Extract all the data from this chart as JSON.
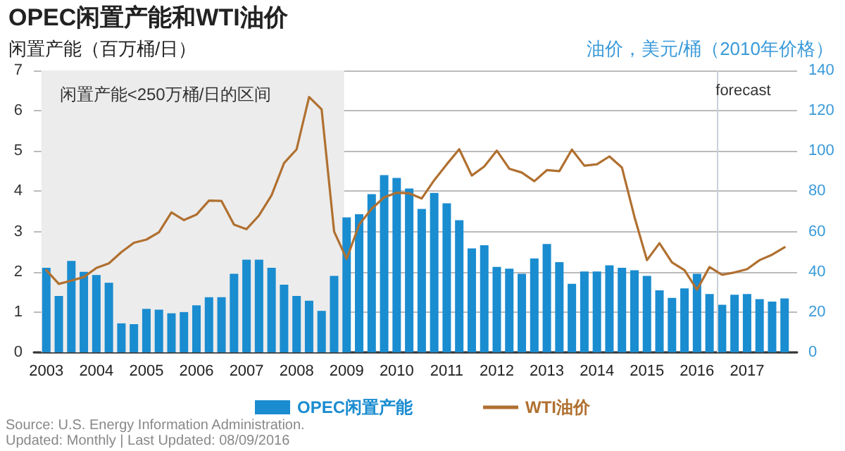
{
  "chart_data": {
    "type": "bar",
    "title": "OPEC闲置产能和WTI油价",
    "ylabel": "闲置产能（百万桶/日）",
    "y2label": "油价，美元/桶（2010年价格）",
    "x": [
      2003,
      2003.25,
      2003.5,
      2003.75,
      2004,
      2004.25,
      2004.5,
      2004.75,
      2005,
      2005.25,
      2005.5,
      2005.75,
      2006,
      2006.25,
      2006.5,
      2006.75,
      2007,
      2007.25,
      2007.5,
      2007.75,
      2008,
      2008.25,
      2008.5,
      2008.75,
      2009,
      2009.25,
      2009.5,
      2009.75,
      2010,
      2010.25,
      2010.5,
      2010.75,
      2011,
      2011.25,
      2011.5,
      2011.75,
      2012,
      2012.25,
      2012.5,
      2012.75,
      2013,
      2013.25,
      2013.5,
      2013.75,
      2014,
      2014.25,
      2014.5,
      2014.75,
      2015,
      2015.25,
      2015.5,
      2015.75,
      2016,
      2016.25,
      2016.5,
      2016.75,
      2017,
      2017.25,
      2017.5,
      2017.75
    ],
    "series": [
      {
        "name": "OPEC闲置产能",
        "color": "#1a8cd0",
        "values": [
          2.1,
          1.4,
          2.27,
          2.0,
          1.92,
          1.73,
          0.72,
          0.7,
          1.08,
          1.06,
          0.97,
          1.0,
          1.17,
          1.37,
          1.37,
          1.95,
          2.3,
          2.3,
          2.1,
          1.68,
          1.4,
          1.28,
          1.03,
          1.9,
          3.35,
          3.43,
          3.93,
          4.4,
          4.33,
          4.07,
          3.56,
          3.96,
          3.7,
          3.28,
          2.58,
          2.66,
          2.12,
          2.08,
          1.95,
          2.33,
          2.69,
          2.24,
          1.7,
          2.01,
          2.01,
          2.16,
          2.1,
          2.04,
          1.9,
          1.54,
          1.35,
          1.59,
          1.95,
          1.45,
          1.18,
          1.43,
          1.45,
          1.32,
          1.26,
          1.34
        ]
      },
      {
        "name": "WTI油价",
        "type": "line",
        "axis": "y2",
        "color": "#b07030",
        "values": [
          40.8,
          34,
          35.6,
          37.4,
          41.9,
          44.2,
          49.8,
          54.4,
          56,
          59.6,
          69.5,
          65.7,
          68.4,
          75.4,
          75.2,
          63.4,
          61.2,
          68,
          78,
          94,
          100.8,
          126.8,
          120.7,
          60,
          46.4,
          63.4,
          71.3,
          77,
          79.3,
          79,
          76.4,
          85.5,
          93.4,
          100.9,
          87.8,
          92.3,
          100.2,
          91.2,
          89.3,
          85,
          90.5,
          90,
          100.7,
          92.7,
          93.4,
          97.3,
          91.8,
          67.3,
          45.8,
          54.2,
          44.7,
          40.8,
          31.1,
          42.4,
          38.5,
          39.7,
          41.3,
          45.8,
          48.5,
          52.2
        ]
      }
    ],
    "xlim": [
      2002.75,
      2018
    ],
    "xticks": [
      2003,
      2004,
      2005,
      2006,
      2007,
      2008,
      2009,
      2010,
      2011,
      2012,
      2013,
      2014,
      2015,
      2016,
      2017
    ],
    "ylim": [
      0,
      7
    ],
    "yticks": [
      0,
      1,
      2,
      3,
      4,
      5,
      6,
      7
    ],
    "y2lim": [
      0,
      140
    ],
    "y2ticks": [
      0,
      20,
      40,
      60,
      80,
      100,
      120,
      140
    ],
    "bands": [
      {
        "axis": "x",
        "from": 2002.9,
        "to": 2008.95,
        "label": "闲置产能<250万桶/日的区间",
        "color": "#ececec"
      }
    ],
    "ref_lines": [
      {
        "axis": "x",
        "value": 2016.4,
        "label": "forecast",
        "color": "#c8d0d8"
      }
    ],
    "grid": "y",
    "legend": "bottom",
    "marker": "none",
    "line_style": "solid",
    "annotations": [
      "Source: U.S. Energy Information Administration.",
      "Updated: Monthly | Last Updated: 08/09/2016"
    ]
  }
}
